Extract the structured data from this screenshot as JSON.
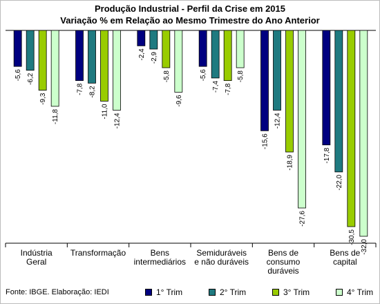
{
  "header": {
    "title": "Produção Industrial - Perfil da Crise em 2015",
    "subtitle": "Variação % em Relação ao Mesmo Trimestre do Ano Anterior"
  },
  "footer": {
    "source": "Fonte: IBGE. Elaboração: IEDI"
  },
  "chart_data": {
    "type": "bar",
    "title": "Produção Industrial - Perfil da Crise em 2015",
    "subtitle": "Variação % em Relação ao Mesmo Trimestre do Ano Anterior",
    "categories": [
      [
        "Indústria",
        "Geral"
      ],
      [
        "Transformação"
      ],
      [
        "Bens",
        "intermediários"
      ],
      [
        "Semiduráveis",
        "e não duráveis"
      ],
      [
        "Bens de",
        "consumo",
        "duráveis"
      ],
      [
        "Bens de",
        "capital"
      ]
    ],
    "series": [
      {
        "name": "1° Trim",
        "color": "#000080",
        "values": [
          -5.6,
          -7.8,
          -2.4,
          -5.6,
          -15.6,
          -17.8
        ]
      },
      {
        "name": "2° Trim",
        "color": "#1f7a80",
        "values": [
          -6.2,
          -8.2,
          -2.9,
          -7.4,
          -12.4,
          -22.0
        ]
      },
      {
        "name": "3° Trim",
        "color": "#99cc00",
        "values": [
          -9.3,
          -11.0,
          -5.8,
          -7.8,
          -18.9,
          -30.5
        ]
      },
      {
        "name": "4° Trim",
        "color": "#ccffcc",
        "values": [
          -11.8,
          -12.4,
          -9.6,
          -5.8,
          -27.6,
          -32.0
        ]
      }
    ],
    "ylim": [
      -32,
      0
    ],
    "grid": false,
    "legend_position": "bottom"
  }
}
